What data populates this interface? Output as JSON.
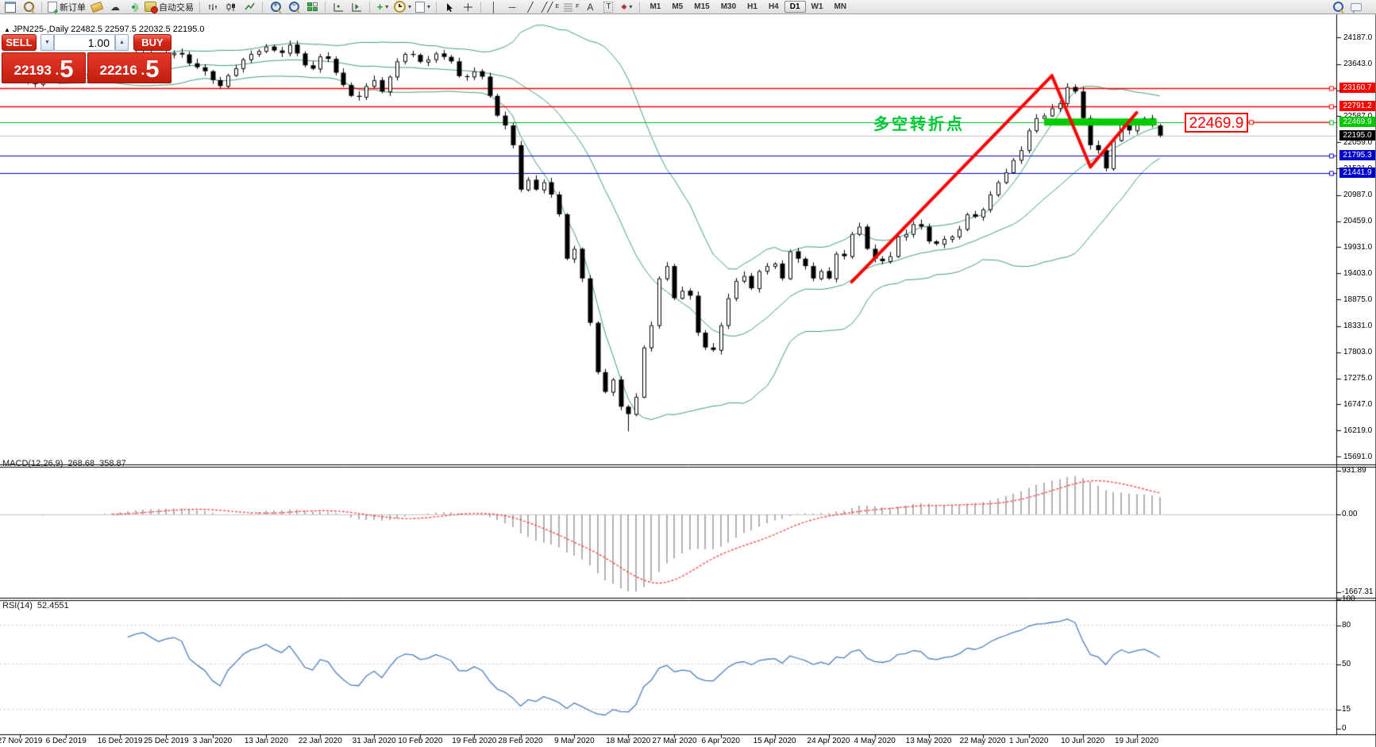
{
  "toolbar": {
    "new_order_label": "新订单",
    "auto_trading_label": "自动交易",
    "channel_badge": "E",
    "fibo_badge": "F",
    "text_icon_label": "A",
    "label_icon_label": "T",
    "timeframes": [
      "M1",
      "M5",
      "M15",
      "M30",
      "H1",
      "H4",
      "D1",
      "W1",
      "MN"
    ],
    "active_timeframe": "D1"
  },
  "trade_panel": {
    "symbol_line": "JPN225-,Daily  22482.5 22597.5 22032.5 22195.0",
    "sell_label": "SELL",
    "buy_label": "BUY",
    "volume": "1.00",
    "sell_price_small": "22193 .",
    "sell_price_big": "5",
    "buy_price_small": "22216 .",
    "buy_price_big": "5"
  },
  "annotation": {
    "text": "多空转折点",
    "color": "#00c838"
  },
  "callout": {
    "text": "22469.9",
    "color": "#ff0000"
  },
  "chart_data": {
    "type": "candlestick",
    "symbol": "JPN225-",
    "timeframe": "Daily",
    "title_ohlc": {
      "open": 22482.5,
      "high": 22597.5,
      "low": 22032.5,
      "close": 22195.0
    },
    "ylim": [
      15691.0,
      24187.0
    ],
    "y_ticks": [
      "24187.0",
      "23643.0",
      "23115.0",
      "22587.0",
      "22059.0",
      "21531.0",
      "20987.0",
      "20459.0",
      "19931.0",
      "19403.0",
      "18875.0",
      "18331.0",
      "17803.0",
      "17275.0",
      "16747.0",
      "16219.0",
      "15691.0"
    ],
    "x_labels": [
      {
        "t": "27 Nov 2019",
        "i": 0
      },
      {
        "t": "6 Dec 2019",
        "i": 6
      },
      {
        "t": "16 Dec 2019",
        "i": 13
      },
      {
        "t": "25 Dec 2019",
        "i": 19
      },
      {
        "t": "3 Jan 2020",
        "i": 25
      },
      {
        "t": "13 Jan 2020",
        "i": 32
      },
      {
        "t": "22 Jan 2020",
        "i": 39
      },
      {
        "t": "31 Jan 2020",
        "i": 46
      },
      {
        "t": "10 Feb 2020",
        "i": 52
      },
      {
        "t": "19 Feb 2020",
        "i": 59
      },
      {
        "t": "28 Feb 2020",
        "i": 65
      },
      {
        "t": "9 Mar 2020",
        "i": 72
      },
      {
        "t": "18 Mar 2020",
        "i": 79
      },
      {
        "t": "27 Mar 2020",
        "i": 85
      },
      {
        "t": "6 Apr 2020",
        "i": 91
      },
      {
        "t": "15 Apr 2020",
        "i": 98
      },
      {
        "t": "24 Apr 2020",
        "i": 105
      },
      {
        "t": "4 May 2020",
        "i": 111
      },
      {
        "t": "13 May 2020",
        "i": 118
      },
      {
        "t": "22 May 2020",
        "i": 125
      },
      {
        "t": "1 Jun 2020",
        "i": 131
      },
      {
        "t": "10 Jun 2020",
        "i": 138
      },
      {
        "t": "19 Jun 2020",
        "i": 145
      }
    ],
    "closes": [
      23390,
      23310,
      23240,
      23300,
      23350,
      23410,
      23430,
      23350,
      23420,
      23390,
      23440,
      23520,
      23560,
      23700,
      23760,
      23830,
      23870,
      23830,
      23790,
      23840,
      23870,
      23840,
      23660,
      23580,
      23500,
      23320,
      23200,
      23420,
      23560,
      23740,
      23850,
      23910,
      24000,
      23920,
      23870,
      24040,
      23860,
      23620,
      23550,
      23800,
      23750,
      23470,
      23220,
      23000,
      22980,
      23200,
      23320,
      23090,
      23390,
      23700,
      23850,
      23830,
      23690,
      23740,
      23860,
      23790,
      23700,
      23400,
      23390,
      23500,
      23390,
      23000,
      22600,
      22400,
      22000,
      21100,
      21300,
      21100,
      21250,
      21000,
      20600,
      19700,
      19900,
      19300,
      18400,
      17400,
      17000,
      17250,
      16700,
      16550,
      16900,
      17900,
      18350,
      19300,
      19550,
      18900,
      19050,
      18950,
      18200,
      17900,
      17850,
      18350,
      18900,
      19250,
      19350,
      19100,
      19450,
      19550,
      19600,
      19300,
      19850,
      19700,
      19550,
      19300,
      19450,
      19300,
      19800,
      19750,
      20200,
      20350,
      19900,
      19700,
      19650,
      19750,
      20150,
      20200,
      20400,
      20350,
      20050,
      20000,
      20100,
      20150,
      20300,
      20600,
      20550,
      20700,
      21000,
      21250,
      21450,
      21700,
      21900,
      22300,
      22550,
      22600,
      22750,
      22850,
      23180,
      23090,
      22550,
      22000,
      21900,
      21530,
      22100,
      22450,
      22300,
      22450,
      22550,
      22400,
      22195
    ],
    "wick_low_overrides": {
      "79": 16200
    },
    "wick_high_overrides": {
      "32": 24050,
      "35": 24120,
      "136": 23255
    },
    "bollinger": {
      "period": 20,
      "color": "#3da06e"
    },
    "price_lines": [
      {
        "label": "23160.7",
        "price": 23160.7,
        "line": "#ff0000",
        "tag": "#ff0000",
        "marker": true
      },
      {
        "label": "22791.2",
        "price": 22791.2,
        "line": "#ff0000",
        "tag": "#ff0000",
        "marker": true
      },
      {
        "label": "22469.9",
        "price": 22469.9,
        "line": "#00b41e",
        "tag": "#00c800",
        "marker": true
      },
      {
        "label": "22195.0",
        "price": 22195.0,
        "line": "#c0c0c0",
        "tag": "#000000",
        "marker": false
      },
      {
        "label": "21795.3",
        "price": 21795.3,
        "line": "#0000cc",
        "tag": "#0000cc",
        "marker": true
      },
      {
        "label": "21441.9",
        "price": 21441.9,
        "line": "#0000cc",
        "tag": "#0000cc",
        "marker": true
      }
    ],
    "trend_lines": [
      {
        "i1": 108,
        "p1": 19230,
        "i2": 134,
        "p2": 23410
      },
      {
        "i1": 134,
        "p1": 23410,
        "i2": 139,
        "p2": 21560
      },
      {
        "i1": 139,
        "p1": 21560,
        "i2": 145,
        "p2": 22660
      }
    ],
    "highlight_bar": {
      "i1": 133,
      "i2": 147.6,
      "price": 22469.9,
      "color": "#00cc00",
      "thickness": 9
    },
    "colors": {
      "up": "#ffffff",
      "down": "#000000",
      "wick": "#000000",
      "trend": "#ff0000",
      "macd_hist": "#b2b2b2",
      "macd_signal": "#ff3232",
      "rsi_line": "#4a7ebf"
    },
    "macd": {
      "name": "MACD(12,26,9)",
      "main": "268.68",
      "signal": "358.87",
      "fast": 12,
      "slow": 26,
      "smoothing": 9,
      "axis": [
        {
          "label": "931.89",
          "v": 931.89
        },
        {
          "label": "0.00",
          "v": 0
        },
        {
          "label": "-1667.31",
          "v": -1667.31
        }
      ]
    },
    "rsi": {
      "name": "RSI(14)",
      "value": "52.4551",
      "period": 14,
      "axis": [
        {
          "label": "100",
          "v": 100
        },
        {
          "label": "80",
          "v": 80
        },
        {
          "label": "50",
          "v": 50
        },
        {
          "label": "15",
          "v": 15
        },
        {
          "label": "0",
          "v": 0
        }
      ],
      "levels": [
        80,
        50,
        15
      ]
    }
  }
}
